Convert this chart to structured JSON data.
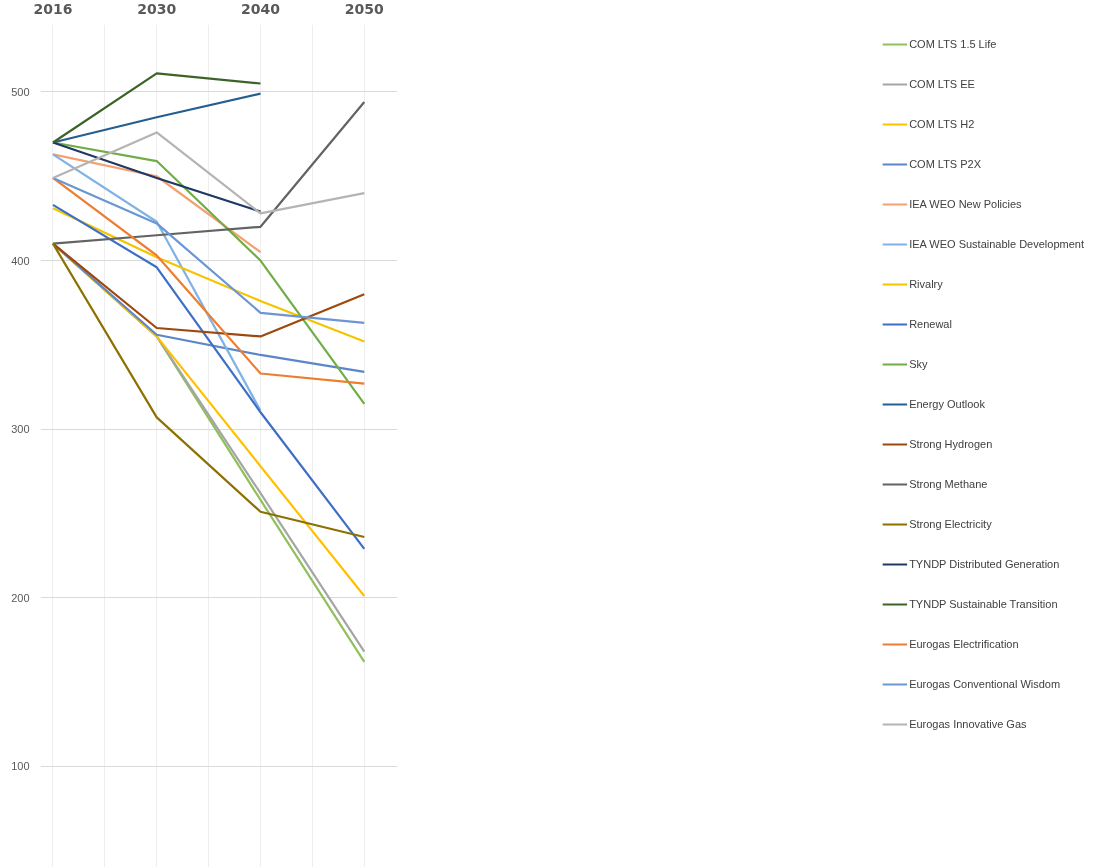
{
  "chart_data": {
    "type": "line",
    "categories": [
      "2016",
      "2030",
      "2040",
      "2050"
    ],
    "ylim": [
      40,
      540
    ],
    "yticks": [
      100,
      200,
      300,
      400,
      500
    ],
    "grid": true,
    "legend": "right",
    "line_style": "solid",
    "marker": "none",
    "series": [
      {
        "name": "COM LTS 1.5 Life",
        "color": "#8fc15a",
        "values": [
          410,
          355,
          258,
          162
        ]
      },
      {
        "name": "COM LTS EE",
        "color": "#a5a5a5",
        "values": [
          410,
          355,
          262,
          168
        ]
      },
      {
        "name": "COM LTS H2",
        "color": "#ffc000",
        "values": [
          410,
          355,
          278,
          201
        ]
      },
      {
        "name": "COM LTS P2X",
        "color": "#5b86c8",
        "values": [
          410,
          356,
          344,
          334
        ]
      },
      {
        "name": "IEA WEO New Policies",
        "color": "#f4a070",
        "values": [
          463,
          450,
          405,
          null
        ]
      },
      {
        "name": "IEA WEO Sustainable Development",
        "color": "#7fb2e5",
        "values": [
          463,
          423,
          311,
          null
        ]
      },
      {
        "name": "Rivalry",
        "color": "#f2c500",
        "values": [
          431,
          402,
          376,
          352
        ]
      },
      {
        "name": "Renewal",
        "color": "#3e6fc7",
        "values": [
          433,
          396,
          310,
          229
        ]
      },
      {
        "name": "Sky",
        "color": "#70ad47",
        "values": [
          470,
          459,
          400,
          315
        ]
      },
      {
        "name": "Energy Outlook",
        "color": "#255e91",
        "values": [
          470,
          485,
          499,
          null
        ]
      },
      {
        "name": "Strong Hydrogen",
        "color": "#9e480e",
        "values": [
          410,
          360,
          355,
          380
        ]
      },
      {
        "name": "Strong Methane",
        "color": "#636363",
        "values": [
          410,
          415,
          420,
          494
        ]
      },
      {
        "name": "Strong Electricity",
        "color": "#8c7000",
        "values": [
          410,
          307,
          251,
          236
        ]
      },
      {
        "name": "TYNDP Distributed Generation",
        "color": "#203864",
        "values": [
          470,
          449,
          429,
          null
        ]
      },
      {
        "name": "TYNDP Sustainable Transition",
        "color": "#3d6328",
        "values": [
          470,
          511,
          505,
          null
        ]
      },
      {
        "name": "Eurogas Electrification",
        "color": "#ed7d31",
        "values": [
          449,
          403,
          333,
          327
        ]
      },
      {
        "name": "Eurogas Conventional Wisdom",
        "color": "#6a97d4",
        "values": [
          449,
          422,
          369,
          363
        ]
      },
      {
        "name": "Eurogas Innovative Gas",
        "color": "#b4b4b4",
        "values": [
          449,
          476,
          428,
          440
        ]
      }
    ]
  }
}
